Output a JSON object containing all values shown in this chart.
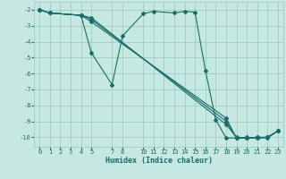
{
  "xlabel": "Humidex (Indice chaleur)",
  "bg_color": "#c5e8e0",
  "grid_color": "#9eccc3",
  "line_color": "#1a6b6b",
  "xlim": [
    -0.5,
    23.5
  ],
  "ylim": [
    -10.6,
    -1.5
  ],
  "xticks": [
    0,
    1,
    2,
    3,
    4,
    5,
    7,
    8,
    10,
    11,
    12,
    13,
    14,
    15,
    16,
    17,
    18,
    19,
    20,
    21,
    22,
    23
  ],
  "yticks": [
    -2,
    -3,
    -4,
    -5,
    -6,
    -7,
    -8,
    -9,
    -10
  ],
  "lines": [
    {
      "x": [
        0,
        1,
        4,
        5,
        7,
        8,
        10,
        11,
        13,
        14,
        15,
        16,
        17,
        18,
        19,
        20,
        21,
        22,
        23
      ],
      "y": [
        -2,
        -2.2,
        -2.35,
        -4.7,
        -6.7,
        -3.65,
        -2.25,
        -2.1,
        -2.2,
        -2.1,
        -2.15,
        -5.8,
        -8.9,
        -10.05,
        -10.05,
        -10.05,
        -10.05,
        -10.0,
        -9.6
      ]
    },
    {
      "x": [
        0,
        1,
        4,
        5,
        18,
        19,
        20,
        21,
        22,
        23
      ],
      "y": [
        -2,
        -2.2,
        -2.35,
        -2.6,
        -9.0,
        -10.05,
        -10.05,
        -10.0,
        -10.0,
        -9.6
      ]
    },
    {
      "x": [
        0,
        1,
        4,
        5,
        18,
        19,
        20,
        21,
        22,
        23
      ],
      "y": [
        -2,
        -2.2,
        -2.35,
        -2.75,
        -8.8,
        -10.05,
        -10.0,
        -10.05,
        -10.0,
        -9.6
      ]
    },
    {
      "x": [
        0,
        1,
        4,
        5,
        18,
        19,
        20,
        21,
        22,
        23
      ],
      "y": [
        -2,
        -2.2,
        -2.35,
        -2.5,
        -9.2,
        -10.0,
        -10.05,
        -10.0,
        -10.05,
        -9.6
      ]
    }
  ]
}
